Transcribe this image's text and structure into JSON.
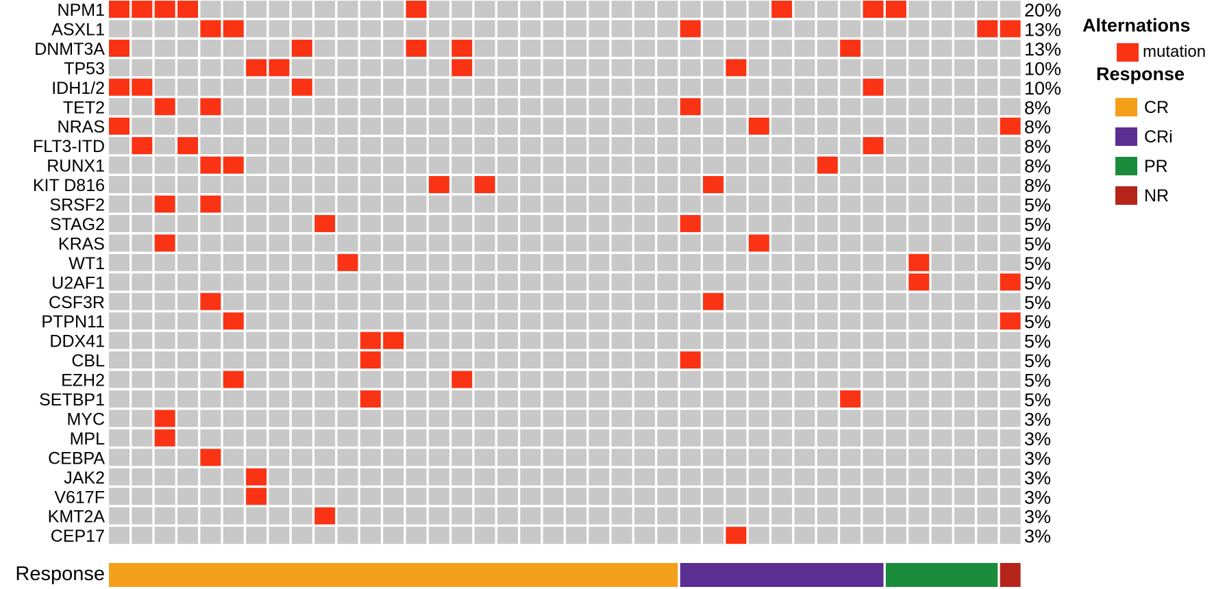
{
  "chart_data": {
    "type": "heatmap",
    "title": "",
    "xlabel": "",
    "ylabel": "",
    "n_samples": 40,
    "genes": [
      "NPM1",
      "ASXL1",
      "DNMT3A",
      "TP53",
      "IDH1/2",
      "TET2",
      "NRAS",
      "FLT3-ITD",
      "RUNX1",
      "KIT D816",
      "SRSF2",
      "STAG2",
      "KRAS",
      "WT1",
      "U2AF1",
      "CSF3R",
      "PTPN11",
      "DDX41",
      "CBL",
      "EZH2",
      "SETBP1",
      "MYC",
      "MPL",
      "CEBPA",
      "JAK2",
      "V617F",
      "KMT2A",
      "CEP17"
    ],
    "percentages": [
      "20%",
      "13%",
      "13%",
      "10%",
      "10%",
      "8%",
      "8%",
      "8%",
      "8%",
      "8%",
      "5%",
      "5%",
      "5%",
      "5%",
      "5%",
      "5%",
      "5%",
      "5%",
      "5%",
      "5%",
      "5%",
      "3%",
      "3%",
      "3%",
      "3%",
      "3%",
      "3%",
      "3%"
    ],
    "mutations": [
      [
        0,
        1,
        2,
        3,
        13,
        29,
        33,
        34
      ],
      [
        4,
        5,
        25,
        38,
        39
      ],
      [
        0,
        8,
        13,
        15,
        32
      ],
      [
        6,
        7,
        15,
        27
      ],
      [
        0,
        1,
        8,
        33
      ],
      [
        2,
        4,
        25
      ],
      [
        0,
        28,
        39
      ],
      [
        1,
        3,
        33
      ],
      [
        4,
        5,
        31
      ],
      [
        14,
        16,
        26
      ],
      [
        2,
        4
      ],
      [
        9,
        25
      ],
      [
        2,
        28
      ],
      [
        10,
        35
      ],
      [
        35,
        39
      ],
      [
        4,
        26
      ],
      [
        5,
        39
      ],
      [
        11,
        12
      ],
      [
        11,
        25
      ],
      [
        5,
        15
      ],
      [
        11,
        32
      ],
      [
        2
      ],
      [
        2
      ],
      [
        4
      ],
      [
        6
      ],
      [
        6
      ],
      [
        9
      ],
      [
        27
      ]
    ],
    "response_row_label": "Response",
    "response_segments": [
      {
        "label": "CR",
        "count": 25
      },
      {
        "label": "CRi",
        "count": 9
      },
      {
        "label": "PR",
        "count": 5
      },
      {
        "label": "NR",
        "count": 1
      }
    ],
    "colors": {
      "empty": "#c8c8c8",
      "mutation": "#fa3314",
      "CR": "#f5a01a",
      "CRi": "#5b2e91",
      "PR": "#1a8c3c",
      "NR": "#b5251a"
    }
  },
  "legend": {
    "alterations_title": "Alternations",
    "alterations_items": [
      {
        "label": "mutation",
        "color_key": "mutation"
      }
    ],
    "response_title": "Response",
    "response_items": [
      {
        "label": "CR",
        "color_key": "CR"
      },
      {
        "label": "CRi",
        "color_key": "CRi"
      },
      {
        "label": "PR",
        "color_key": "PR"
      },
      {
        "label": "NR",
        "color_key": "NR"
      }
    ]
  }
}
